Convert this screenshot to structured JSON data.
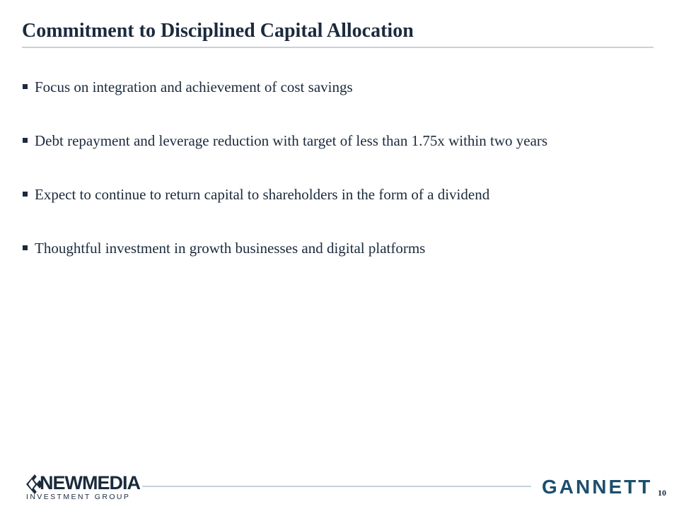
{
  "slide": {
    "title": "Commitment to Disciplined Capital Allocation",
    "bullets": [
      "Focus on integration and achievement of cost savings",
      "Debt repayment and leverage reduction with target of less than 1.75x within two years",
      "Expect to continue to return capital to shareholders in the form of a dividend",
      "Thoughtful investment in growth businesses and digital platforms"
    ],
    "page_number": "10"
  },
  "footer": {
    "left_logo": {
      "wordmark": "NEWMEDIA",
      "subtitle": "INVESTMENT GROUP",
      "icon": "newmedia-diamond-logo-icon"
    },
    "right_logo": {
      "wordmark": "GANNETT"
    }
  },
  "colors": {
    "text": "#1b2a3d",
    "rule": "#c9d1d8",
    "gannett_blue": "#1d4e6e"
  }
}
